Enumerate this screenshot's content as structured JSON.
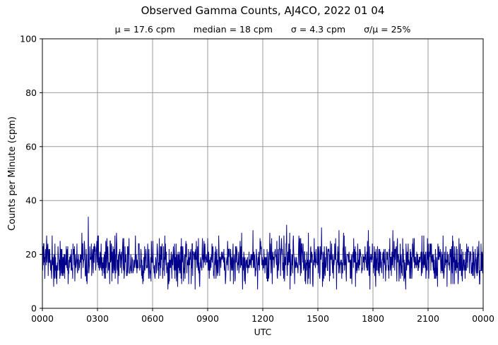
{
  "chart_data": {
    "type": "line",
    "title": "Observed Gamma Counts, AJ4CO, 2022 01 04",
    "xlabel": "UTC",
    "ylabel": "Counts per Minute (cpm)",
    "x_ticks": [
      "0000",
      "0300",
      "0600",
      "0900",
      "1200",
      "1500",
      "1800",
      "2100",
      "0000"
    ],
    "x_tick_minutes": [
      0,
      180,
      360,
      540,
      720,
      900,
      1080,
      1260,
      1440
    ],
    "x_range_minutes": [
      0,
      1440
    ],
    "y_ticks": [
      0,
      20,
      40,
      60,
      80,
      100
    ],
    "ylim": [
      0,
      100
    ],
    "grid": true,
    "legend": "none",
    "colors": {
      "line": "#00008B",
      "grid": "#9b9b9b",
      "frame": "#000000",
      "text": "#000000",
      "background": "#ffffff"
    },
    "series": [
      {
        "name": "observed gamma counts",
        "unit": "cpm",
        "n_points": 1440,
        "mean": 17.6,
        "median": 18,
        "sigma": 4.3,
        "sigma_over_mean_pct": 25,
        "observed_min": 7,
        "observed_max": 34,
        "color": "#00008B",
        "description": "Flat noisy baseline fluctuating around 17-18 cpm across the whole 24 h, spikes up to ~34 cpm and dips down to ~7 cpm; no trends or bursts."
      }
    ],
    "stats_annotations": [
      "μ = 17.6 cpm",
      "median = 18 cpm",
      "σ = 4.3 cpm",
      "σ/μ = 25%"
    ]
  }
}
